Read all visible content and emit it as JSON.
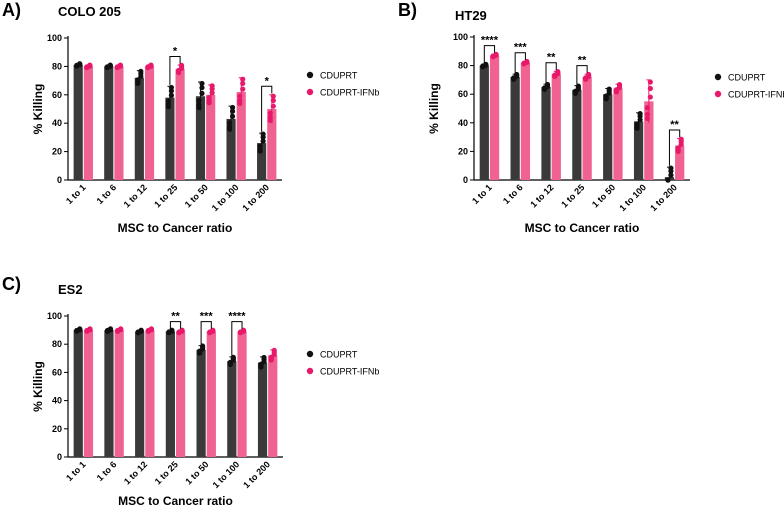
{
  "figure": {
    "colors": {
      "series1": "#111111",
      "series2": "#e8196b",
      "bar1": "#3a3a3a",
      "bar2": "#f06291"
    }
  },
  "chart_data": [
    {
      "panel": "A)",
      "type": "bar",
      "title": "COLO 205",
      "xlabel": "MSC to Cancer ratio",
      "ylabel": "% Killing",
      "ylim": [
        0,
        100
      ],
      "yticks": [
        0,
        20,
        40,
        60,
        80,
        100
      ],
      "categories": [
        "1 to 1",
        "1 to 6",
        "1 to 12",
        "1 to 25",
        "1 to 50",
        "1 to 100",
        "1 to 200"
      ],
      "series": [
        {
          "name": "CDUPRT",
          "values": [
            81,
            80,
            72,
            58,
            59,
            43,
            26
          ],
          "errors": [
            1,
            1,
            5,
            8,
            10,
            9,
            7
          ]
        },
        {
          "name": "CDUPRT-IFNb",
          "values": [
            80,
            80,
            80,
            78,
            60,
            62,
            50
          ],
          "errors": [
            1,
            1,
            1,
            3,
            7,
            10,
            10
          ]
        }
      ],
      "significance": [
        {
          "index": 3,
          "label": "*"
        },
        {
          "index": 6,
          "label": "*"
        }
      ],
      "legend_position": "right"
    },
    {
      "panel": "B)",
      "type": "bar",
      "title": "HT29",
      "xlabel": "MSC to Cancer ratio",
      "ylabel": "% Killing",
      "ylim": [
        0,
        100
      ],
      "yticks": [
        0,
        20,
        40,
        60,
        80,
        100
      ],
      "categories": [
        "1 to 1",
        "1 to 6",
        "1 to 12",
        "1 to 25",
        "1 to 50",
        "1 to 100",
        "1 to 200"
      ],
      "series": [
        {
          "name": "CDUPRT",
          "values": [
            80,
            72,
            65,
            63,
            60,
            41,
            2
          ],
          "errors": [
            1,
            2,
            2,
            3,
            4,
            6,
            7
          ]
        },
        {
          "name": "CDUPRT-IFNb",
          "values": [
            87,
            82,
            74,
            72,
            64,
            55,
            24
          ],
          "errors": [
            1,
            1,
            2,
            2,
            3,
            15,
            5
          ]
        }
      ],
      "significance": [
        {
          "index": 0,
          "label": "****"
        },
        {
          "index": 1,
          "label": "***"
        },
        {
          "index": 2,
          "label": "**"
        },
        {
          "index": 3,
          "label": "**"
        },
        {
          "index": 6,
          "label": "**"
        }
      ],
      "legend_position": "right"
    },
    {
      "panel": "C)",
      "type": "bar",
      "title": "ES2",
      "xlabel": "MSC to Cancer ratio",
      "ylabel": "% Killing",
      "ylim": [
        0,
        100
      ],
      "yticks": [
        0,
        20,
        40,
        60,
        80,
        100
      ],
      "categories": [
        "1 to 1",
        "1 to 6",
        "1 to 12",
        "1 to 25",
        "1 to 50",
        "1 to 100",
        "1 to 200"
      ],
      "series": [
        {
          "name": "CDUPRT",
          "values": [
            90,
            90,
            89,
            89,
            76,
            68,
            67
          ],
          "errors": [
            1,
            1,
            1,
            1,
            3,
            3,
            4
          ]
        },
        {
          "name": "CDUPRT-IFNb",
          "values": [
            90,
            90,
            90,
            89,
            89,
            89,
            72
          ],
          "errors": [
            1,
            1,
            1,
            1,
            1,
            1,
            4
          ]
        }
      ],
      "significance": [
        {
          "index": 3,
          "label": "**"
        },
        {
          "index": 4,
          "label": "***"
        },
        {
          "index": 5,
          "label": "****"
        }
      ],
      "legend_position": "right"
    }
  ]
}
